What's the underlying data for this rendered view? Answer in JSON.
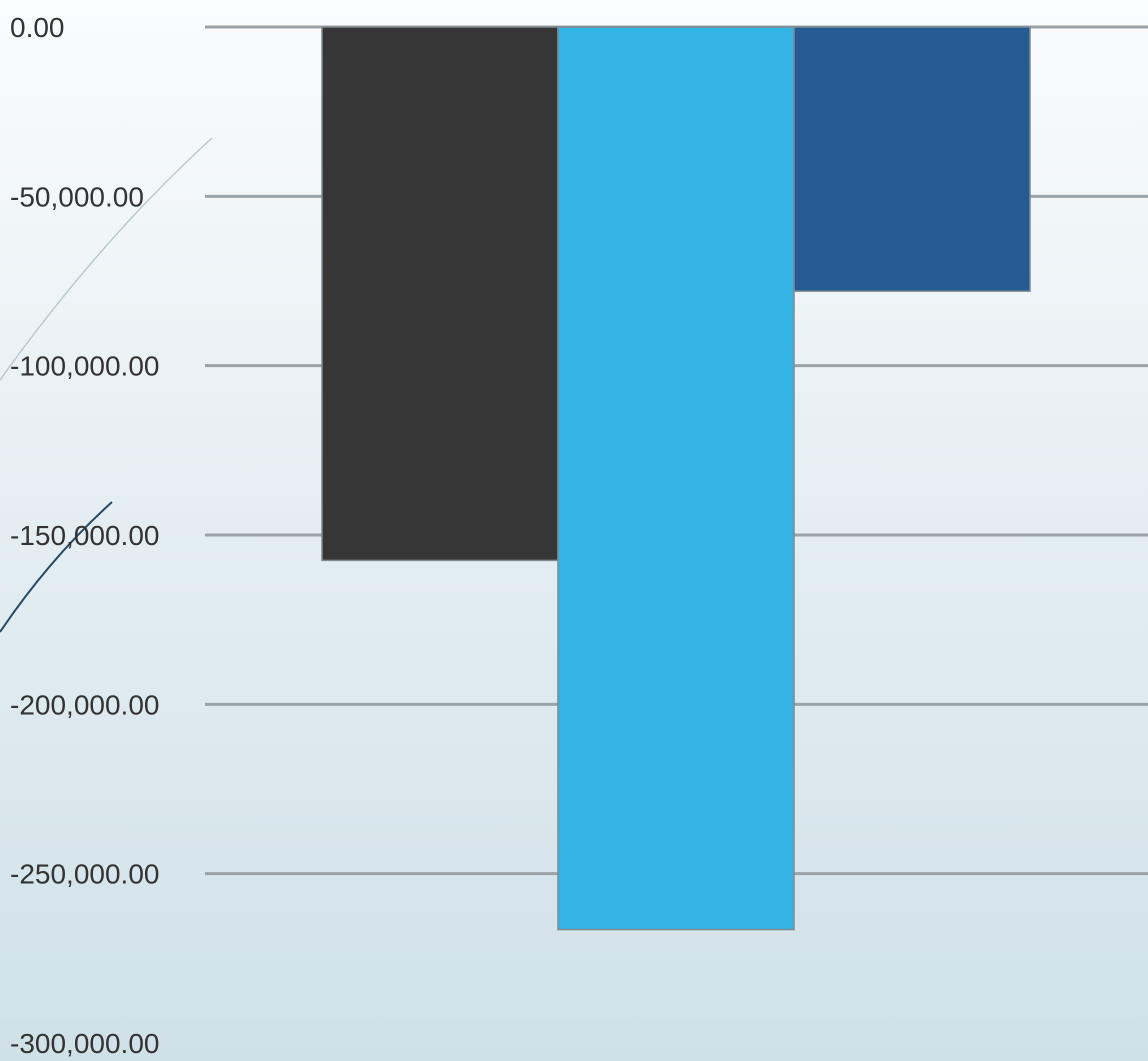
{
  "chart_data": {
    "type": "bar",
    "categories": [
      "",
      "",
      ""
    ],
    "series": [
      {
        "values": [
          -157500,
          -266500,
          -78000
        ]
      }
    ],
    "bar_colors": [
      "#363636",
      "#33b4e4",
      "#255b93"
    ],
    "yticks": [
      {
        "value": 0,
        "label": "0.00"
      },
      {
        "value": -50000,
        "label": "-50,000.00"
      },
      {
        "value": -100000,
        "label": "-100,000.00"
      },
      {
        "value": -150000,
        "label": "-150,000.00"
      },
      {
        "value": -200000,
        "label": "-200,000.00"
      },
      {
        "value": -250000,
        "label": "-250,000.00"
      },
      {
        "value": -300000,
        "label": "-300,000.00"
      }
    ],
    "ylim": [
      -300000,
      0
    ],
    "grid": true,
    "legend": "none"
  }
}
